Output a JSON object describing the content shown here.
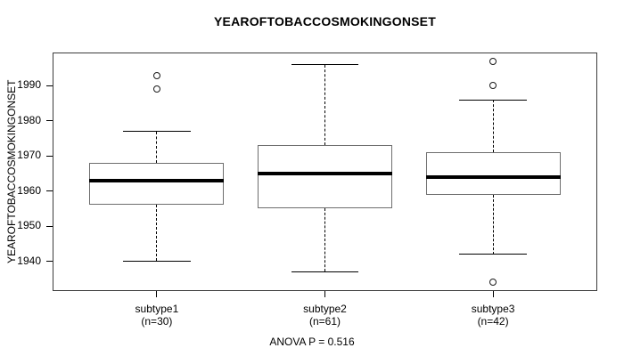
{
  "figure": {
    "title": "YEAROFTOBACCOSMOKINGONSET",
    "y_axis_label": "YEAROFTOBACCOSMOKINGONSET",
    "annotation": "ANOVA P = 0.516"
  },
  "chart_data": {
    "type": "boxplot",
    "title": "YEAROFTOBACCOSMOKINGONSET",
    "ylabel": "YEAROFTOBACCOSMOKINGONSET",
    "xlabel": "",
    "annotation": "ANOVA P = 0.516",
    "ylim": [
      1931.5,
      1999.5
    ],
    "xlim": [
      0.38,
      3.62
    ],
    "y_ticks": [
      1990,
      1980,
      1970,
      1960,
      1950,
      1940
    ],
    "grid": false,
    "legend": "none",
    "categories": [
      "subtype1",
      "subtype2",
      "subtype3"
    ],
    "groups": [
      {
        "label": "subtype1",
        "sublabel": "(n=30)",
        "n": 30,
        "position": 1,
        "whisker_low": 1940,
        "q1": 1956,
        "median": 1963,
        "q3": 1968,
        "whisker_high": 1977,
        "outliers": [
          1989,
          1993
        ]
      },
      {
        "label": "subtype2",
        "sublabel": "(n=61)",
        "n": 61,
        "position": 2,
        "whisker_low": 1937,
        "q1": 1955,
        "median": 1965,
        "q3": 1973,
        "whisker_high": 1996,
        "outliers": []
      },
      {
        "label": "subtype3",
        "sublabel": "(n=42)",
        "n": 42,
        "position": 3,
        "whisker_low": 1942,
        "q1": 1959,
        "median": 1964,
        "q3": 1971,
        "whisker_high": 1986,
        "outliers": [
          1934,
          1990,
          1997
        ]
      }
    ],
    "colors": {
      "background": "#ffffff",
      "text": "#000000",
      "frame": "#3c3c3c",
      "box_border": "#6e6e6e",
      "median": "#000000",
      "whisker": "#000000"
    }
  }
}
